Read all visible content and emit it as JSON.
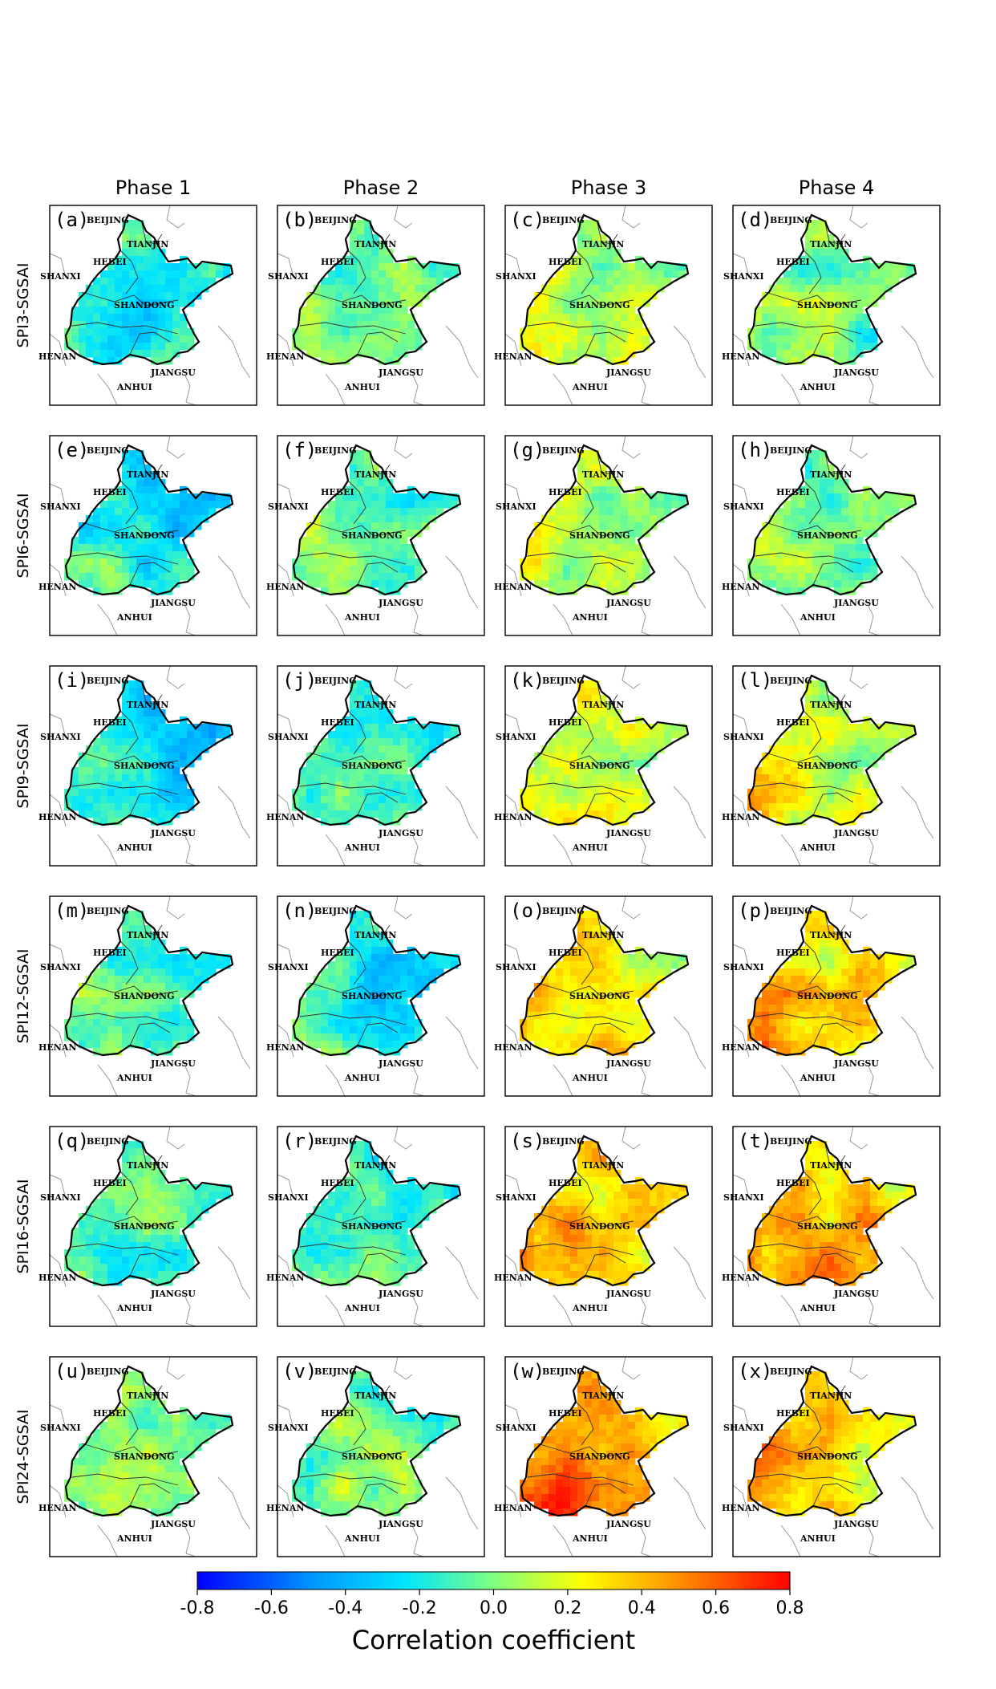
{
  "chart_data": {
    "type": "heatmap",
    "title": "",
    "columns": [
      "Phase 1",
      "Phase 2",
      "Phase 3",
      "Phase 4"
    ],
    "rows": [
      "SPI3-SGSAI",
      "SPI6-SGSAI",
      "SPI9-SGSAI",
      "SPI12-SGSAI",
      "SPI16-SGSAI",
      "SPI24-SGSAI"
    ],
    "panel_letters": [
      [
        "(a)",
        "(b)",
        "(c)",
        "(d)"
      ],
      [
        "(e)",
        "(f)",
        "(g)",
        "(h)"
      ],
      [
        "(i)",
        "(j)",
        "(k)",
        "(l)"
      ],
      [
        "(m)",
        "(n)",
        "(o)",
        "(p)"
      ],
      [
        "(q)",
        "(r)",
        "(s)",
        "(t)"
      ],
      [
        "(u)",
        "(v)",
        "(w)",
        "(x)"
      ]
    ],
    "map_labels": [
      "BEIJING",
      "TIANJIN",
      "HEBEI",
      "SHANXI",
      "SHANDONG",
      "HENAN",
      "JIANGSU",
      "ANHUI"
    ],
    "approx_mean_correlation": [
      [
        -0.2,
        -0.05,
        0.05,
        -0.05
      ],
      [
        -0.25,
        -0.1,
        0.05,
        -0.05
      ],
      [
        -0.25,
        -0.15,
        0.15,
        0.15
      ],
      [
        -0.2,
        -0.25,
        0.25,
        0.25
      ],
      [
        -0.1,
        -0.15,
        0.35,
        0.35
      ],
      [
        0.0,
        -0.05,
        0.4,
        0.3
      ]
    ],
    "colorbar": {
      "label": "Correlation coefficient",
      "range": [
        -0.8,
        0.8
      ],
      "ticks": [
        "-0.8",
        "-0.6",
        "-0.4",
        "-0.2",
        "0.0",
        "0.2",
        "0.4",
        "0.6",
        "0.8"
      ],
      "colors": [
        "#0000ff",
        "#00e5ff",
        "#80ff80",
        "#ffff00",
        "#ff8000",
        "#ff0000"
      ]
    }
  }
}
